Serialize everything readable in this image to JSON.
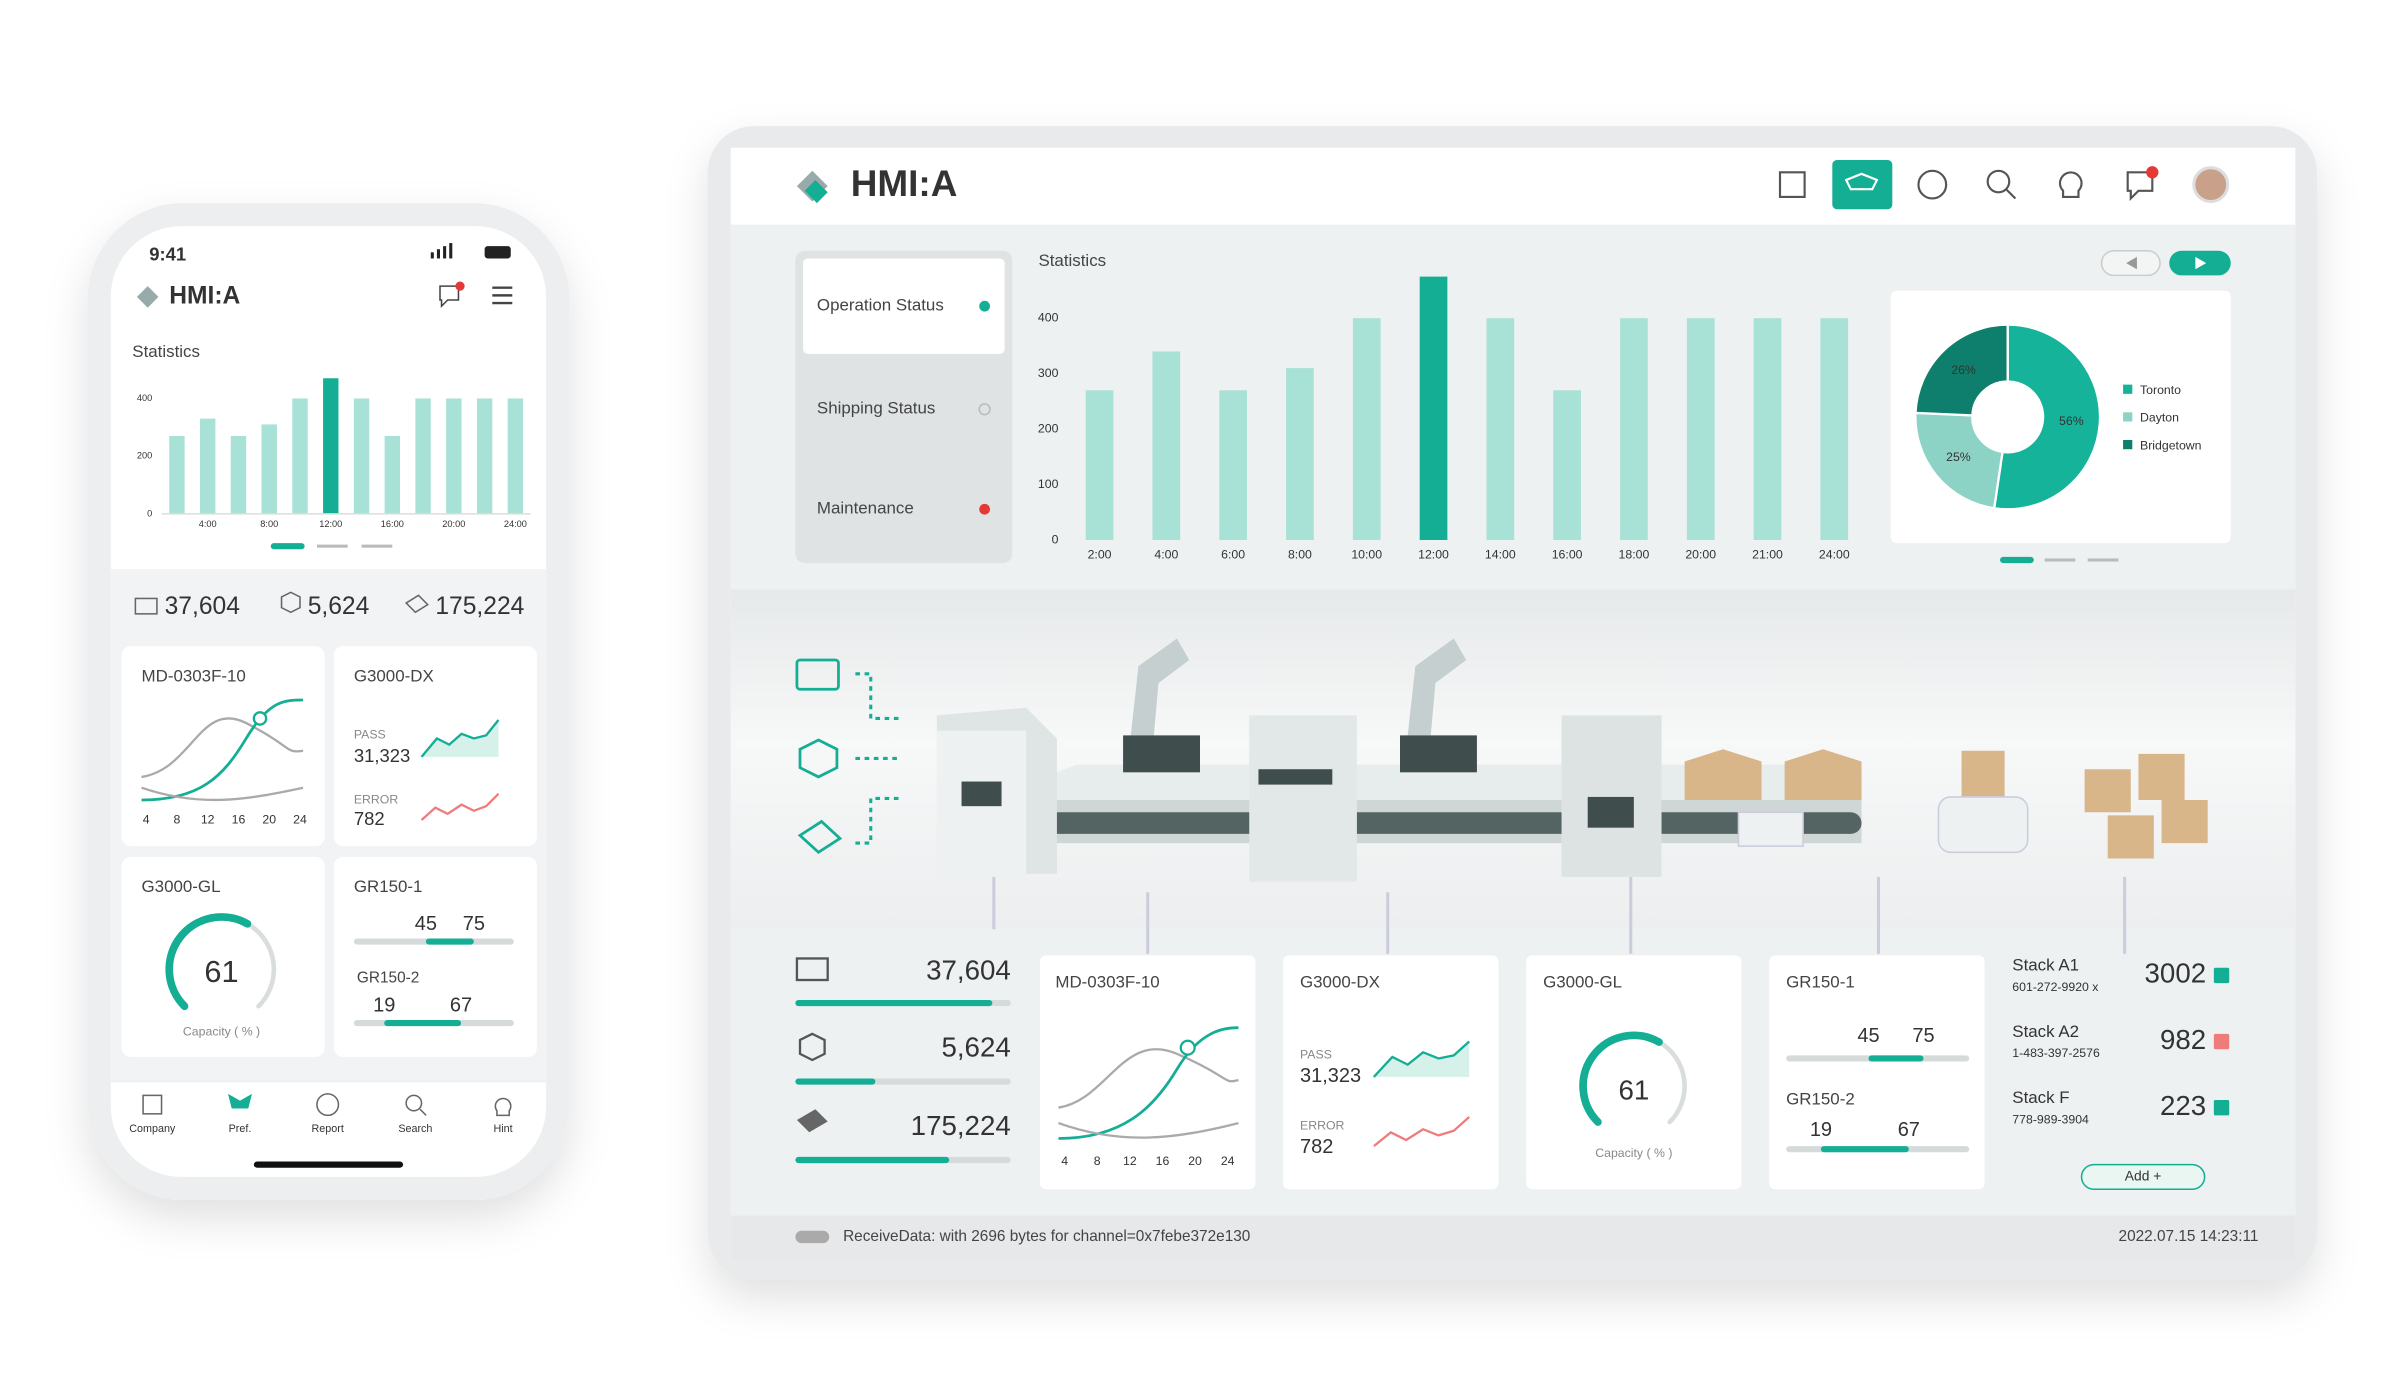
{
  "phone": {
    "time": "9:41",
    "logo": "HMI:A",
    "nav": [
      "Company",
      "Pref.",
      "Report",
      "Search",
      "Hint"
    ]
  },
  "tablet": {
    "logo": "HMI:A",
    "menu": [
      "Operation Status",
      "Shipping Status",
      "Maintenance"
    ],
    "stacks": [
      {
        "name": "Stack A1",
        "phone": "601-272-9920 x",
        "value": 3002
      },
      {
        "name": "Stack A2",
        "phone": "1-483-397-2576",
        "value": 982
      },
      {
        "name": "Stack F",
        "phone": "778-989-3904",
        "value": 223
      }
    ],
    "add_button": "Add  +",
    "status": "ReceiveData: with 2696 bytes for channel=0x7febe372e130",
    "timestamp": "2022.07.15 14:23:11"
  },
  "stats": [
    "37,604",
    "5,624",
    "175,224"
  ],
  "machines": {
    "md": {
      "title": "MD-0303F-10",
      "x_labels": [
        "4",
        "8",
        "12",
        "16",
        "20",
        "24"
      ]
    },
    "dx": {
      "title": "G3000-DX",
      "pass_label": "PASS",
      "pass": "31,323",
      "error_label": "ERROR",
      "error": "782"
    },
    "gl": {
      "title": "G3000-GL",
      "value": 61,
      "caption": "Capacity ( % )"
    },
    "gr1": {
      "title": "GR150-1",
      "low": 45,
      "high": 75
    },
    "gr2": {
      "title": "GR150-2",
      "low": 19,
      "high": 67
    }
  },
  "chart_data": [
    {
      "type": "bar",
      "title": "Statistics",
      "categories": [
        "2:00",
        "4:00",
        "6:00",
        "8:00",
        "10:00",
        "12:00",
        "14:00",
        "16:00",
        "18:00",
        "20:00",
        "21:00",
        "24:00"
      ],
      "values": [
        270,
        340,
        270,
        310,
        400,
        475,
        400,
        270,
        400,
        400,
        400,
        400
      ],
      "colors": [
        "#a8e1d5",
        "#a8e1d5",
        "#a8e1d5",
        "#a8e1d5",
        "#a8e1d5",
        "#14ae95",
        "#a8e1d5",
        "#a8e1d5",
        "#a8e1d5",
        "#a8e1d5",
        "#a8e1d5",
        "#a8e1d5"
      ],
      "ylim": [
        0,
        480
      ],
      "yticks": [
        0,
        100,
        200,
        300,
        400
      ]
    },
    {
      "type": "bar",
      "title": "Statistics",
      "categories": [
        null,
        "4:00",
        null,
        "8:00",
        null,
        "12:00",
        null,
        "16:00",
        null,
        "20:00",
        null,
        "24:00"
      ],
      "values": [
        270,
        330,
        270,
        310,
        400,
        470,
        400,
        270,
        400,
        400,
        400,
        400
      ],
      "colors": [
        "#a8e1d5",
        "#a8e1d5",
        "#a8e1d5",
        "#a8e1d5",
        "#a8e1d5",
        "#14ae95",
        "#a8e1d5",
        "#a8e1d5",
        "#a8e1d5",
        "#a8e1d5",
        "#a8e1d5",
        "#a8e1d5"
      ],
      "ylim": [
        0,
        480
      ],
      "yticks": [
        0,
        200,
        400
      ]
    },
    {
      "type": "pie",
      "categories": [
        "Toronto",
        "Dayton",
        "Bridgetown"
      ],
      "values": [
        56,
        25,
        26
      ],
      "value_labels": [
        "56%",
        "25%",
        "26%"
      ],
      "colors": [
        "#14b39a",
        "#8dd3c5",
        "#0d7f6c"
      ]
    }
  ]
}
